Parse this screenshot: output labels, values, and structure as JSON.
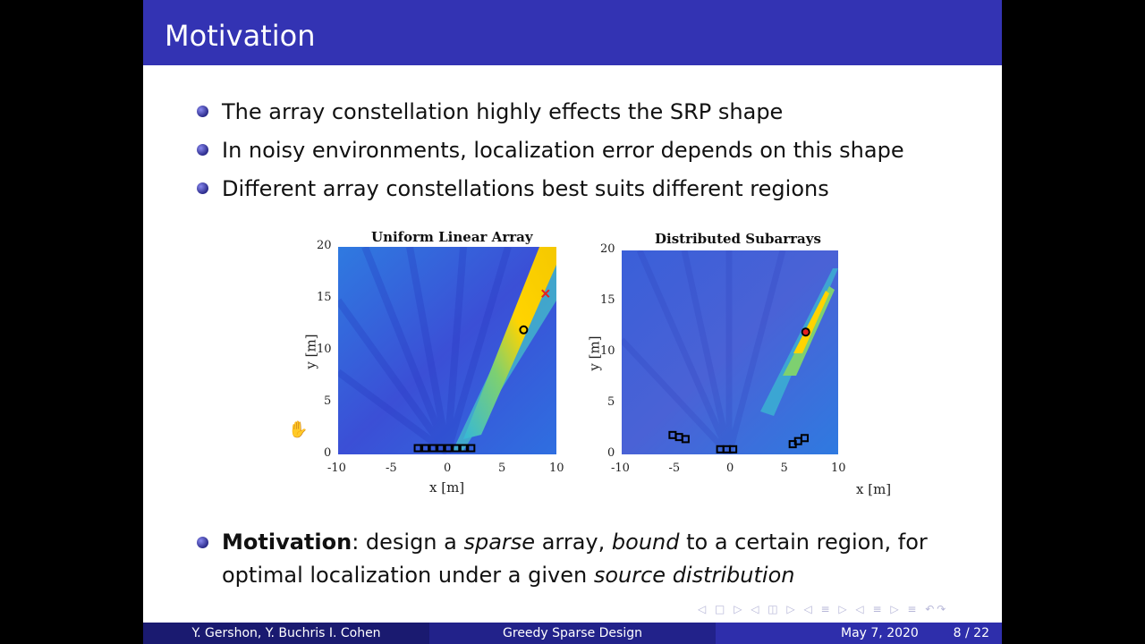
{
  "slide": {
    "title": "Motivation",
    "bullets": [
      "The array constellation highly effects the SRP shape",
      "In noisy environments, localization error depends on this shape",
      "Different array constellations best suits different regions"
    ],
    "last_bullet": {
      "bold": "Motivation",
      "t1": ": design a ",
      "i1": "sparse",
      "t2": " array, ",
      "i2": "bound",
      "t3": " to a certain region, for",
      "t4": "optimal localization under a given ",
      "i3": "source distribution"
    }
  },
  "chart_data": [
    {
      "type": "heatmap",
      "title": "Uniform Linear Array",
      "xlabel": "x [m]",
      "ylabel": "y [m]",
      "xlim": [
        -10,
        10
      ],
      "ylim": [
        0,
        20
      ],
      "xticks": [
        "-10",
        "-5",
        "0",
        "5",
        "10"
      ],
      "yticks": [
        "0",
        "5",
        "10",
        "15",
        "20"
      ],
      "true_source": {
        "x": 7,
        "y": 12
      },
      "estimated_source": {
        "x": 9,
        "y": 15.5
      },
      "microphones": [
        {
          "x": -2.7,
          "y": 0.6
        },
        {
          "x": -2.0,
          "y": 0.6
        },
        {
          "x": -1.3,
          "y": 0.6
        },
        {
          "x": -0.6,
          "y": 0.6
        },
        {
          "x": 0.1,
          "y": 0.6
        },
        {
          "x": 0.8,
          "y": 0.6
        },
        {
          "x": 1.5,
          "y": 0.6
        },
        {
          "x": 2.2,
          "y": 0.6
        }
      ],
      "colors": {
        "background": "#3a5fd8",
        "peak": "#ffd400",
        "estimate": "#e62020"
      }
    },
    {
      "type": "heatmap",
      "title": "Distributed Subarrays",
      "xlabel": "x [m]",
      "ylabel": "y [m]",
      "xlim": [
        -10,
        10
      ],
      "ylim": [
        0,
        20
      ],
      "xticks": [
        "-10",
        "-5",
        "0",
        "5",
        "10"
      ],
      "yticks": [
        "0",
        "5",
        "10",
        "15",
        "20"
      ],
      "true_source": {
        "x": 7,
        "y": 12
      },
      "estimated_source": {
        "x": 7,
        "y": 12
      },
      "microphones": [
        {
          "x": -5.3,
          "y": 1.9
        },
        {
          "x": -4.7,
          "y": 1.7
        },
        {
          "x": -4.1,
          "y": 1.5
        },
        {
          "x": -0.9,
          "y": 0.5
        },
        {
          "x": -0.3,
          "y": 0.5
        },
        {
          "x": 0.3,
          "y": 0.5
        },
        {
          "x": 5.8,
          "y": 1.0
        },
        {
          "x": 6.3,
          "y": 1.3
        },
        {
          "x": 6.9,
          "y": 1.6
        }
      ],
      "colors": {
        "background": "#3a5fd8",
        "peak": "#ffd400",
        "estimate": "#e62020"
      }
    }
  ],
  "footer": {
    "authors": "Y. Gershon, Y. Buchris I. Cohen",
    "talk_title": "Greedy Sparse Design",
    "date": "May 7, 2020",
    "page": "8 / 22"
  },
  "icons": {
    "hand": "✋",
    "nav": "◁ □ ▷ ◁ ◫ ▷ ◁ ≡ ▷ ◁ ≡ ▷ ≡ ↶↷"
  }
}
